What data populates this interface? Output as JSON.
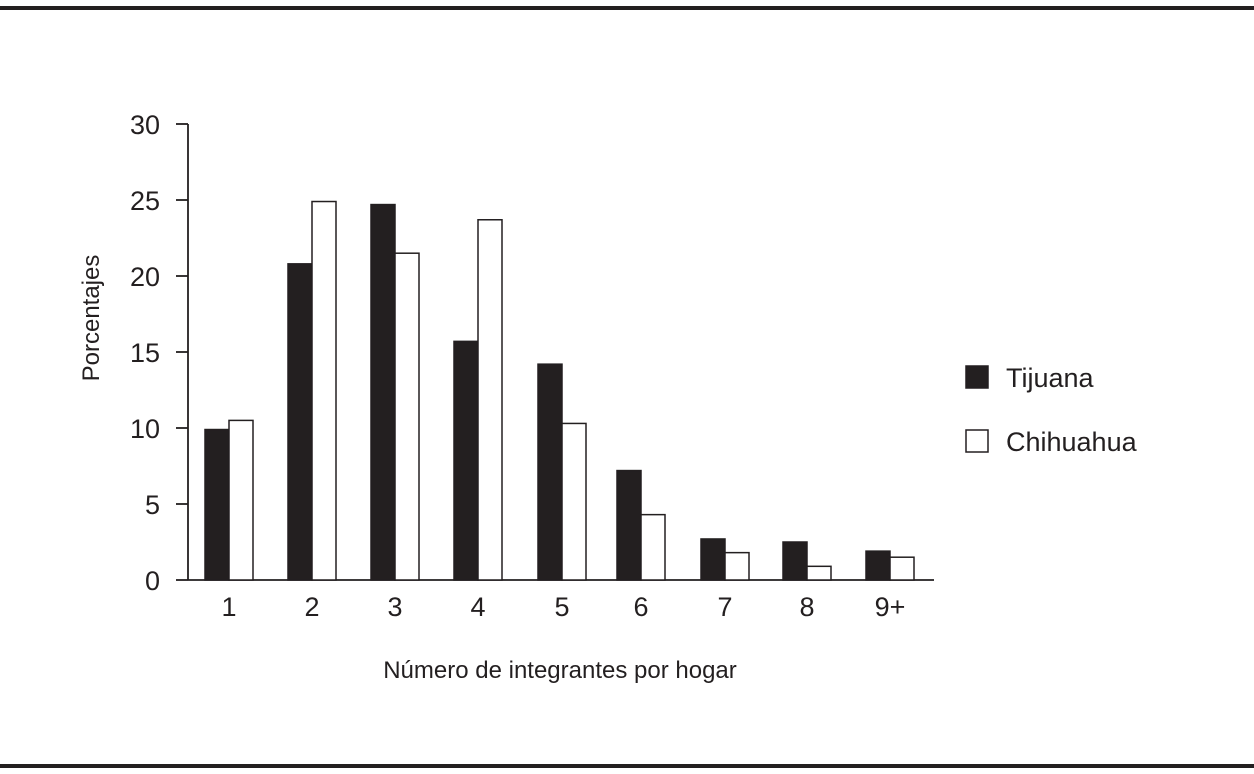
{
  "chart_data": {
    "type": "bar",
    "categories": [
      "1",
      "2",
      "3",
      "4",
      "5",
      "6",
      "7",
      "8",
      "9+"
    ],
    "series": [
      {
        "name": "Tijuana",
        "values": [
          9.9,
          20.8,
          24.7,
          15.7,
          14.2,
          7.2,
          2.7,
          2.5,
          1.9
        ],
        "color": "#231f20"
      },
      {
        "name": "Chihuahua",
        "values": [
          10.5,
          24.9,
          21.5,
          23.7,
          10.3,
          4.3,
          1.8,
          0.9,
          1.5
        ],
        "color": "#ffffff"
      }
    ],
    "title": "",
    "xlabel": "Número de integrantes por hogar",
    "ylabel": "Porcentajes",
    "ylim": [
      0,
      30
    ],
    "yticks": [
      "0",
      "5",
      "10",
      "15",
      "20",
      "25",
      "30"
    ],
    "grid": false,
    "legend_position": "right"
  }
}
